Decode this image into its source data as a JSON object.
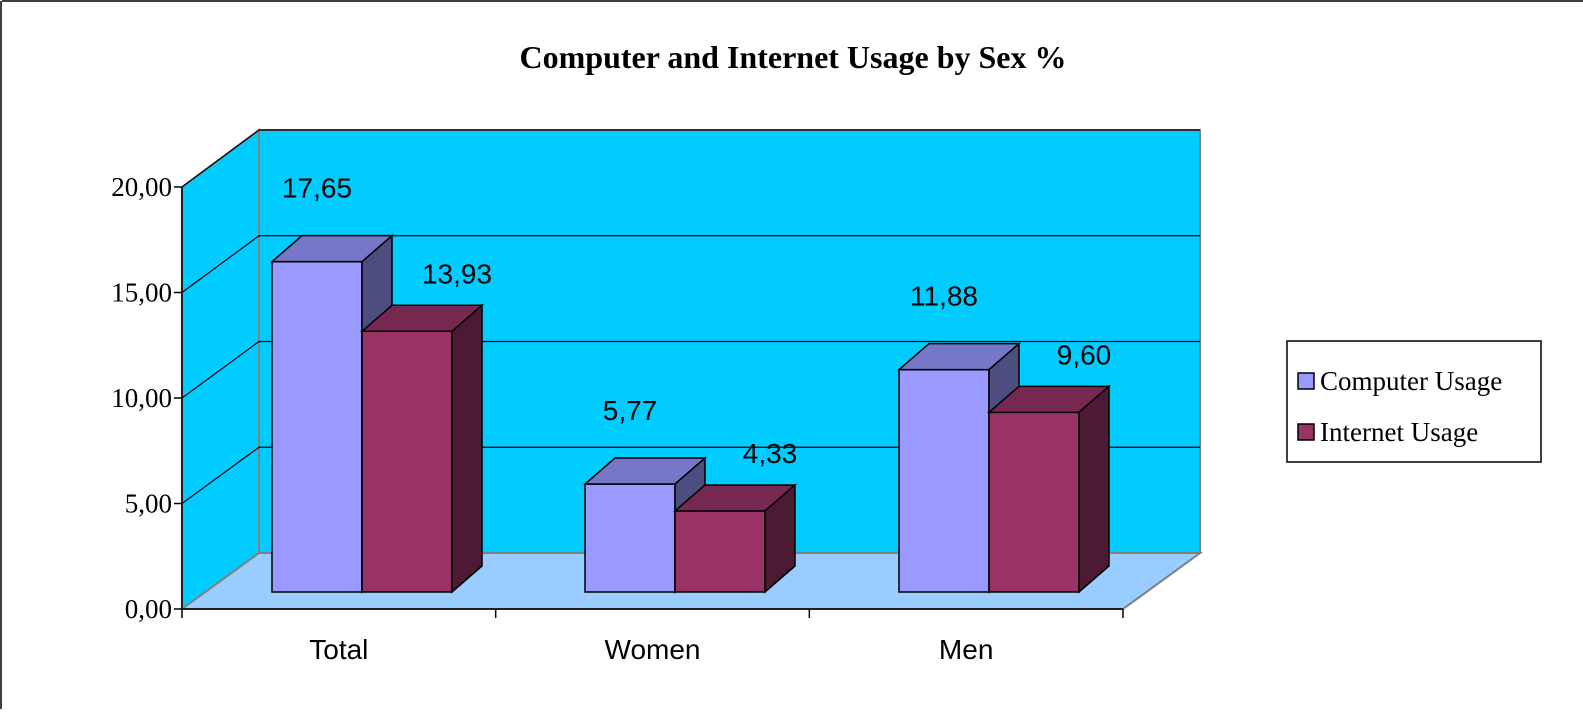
{
  "chart_data": {
    "type": "bar",
    "title": "Computer and Internet Usage by Sex %",
    "categories": [
      "Total",
      "Women",
      "Men"
    ],
    "series": [
      {
        "name": "Computer Usage",
        "values": [
          17.65,
          5.77,
          11.88
        ],
        "labels": [
          "17,65",
          "5,77",
          "11,88"
        ],
        "color": "#9999FF"
      },
      {
        "name": "Internet Usage",
        "values": [
          13.93,
          4.33,
          9.6
        ],
        "labels": [
          "13,93",
          "4,33",
          "9,60"
        ],
        "color": "#993366"
      }
    ],
    "ylim": [
      0,
      20
    ],
    "yticks": [
      0,
      5,
      10,
      15,
      20
    ],
    "ytick_labels": [
      "0,00",
      "5,00",
      "10,00",
      "15,00",
      "20,00"
    ],
    "xlabel": "",
    "ylabel": "",
    "grid": true,
    "legend_position": "right",
    "style": "3d-clustered-column",
    "colors": {
      "wall": "#00CCFF",
      "floor": "#99CCFF",
      "axis": "#808080",
      "gridline": "#000000"
    }
  }
}
